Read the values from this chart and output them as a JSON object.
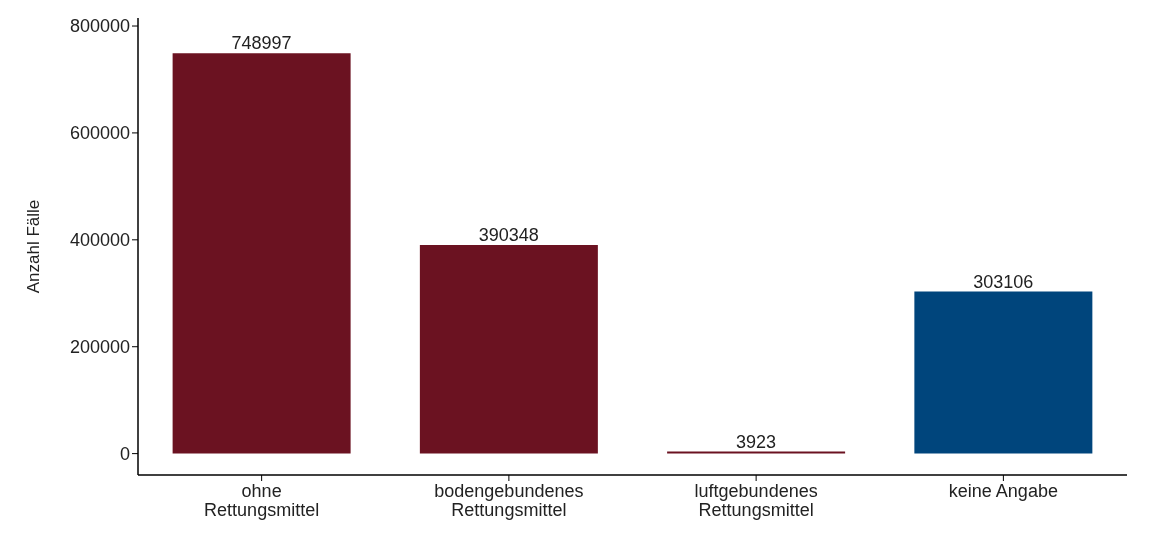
{
  "chart_data": {
    "type": "bar",
    "ylabel": "Anzahl Fälle",
    "categories": [
      "ohne\nRettungsmittel",
      "bodengebundenes\nRettungsmittel",
      "luftgebundenes\nRettungsmittel",
      "keine Angabe"
    ],
    "values": [
      748997,
      390348,
      3923,
      303106
    ],
    "colors": [
      "#6b1221",
      "#6b1221",
      "#6b1221",
      "#00457c"
    ],
    "ylim": [
      -40000,
      815000
    ],
    "yticks": [
      0,
      200000,
      400000,
      600000,
      800000
    ],
    "data_labels": true,
    "grid": false,
    "legend": false
  }
}
